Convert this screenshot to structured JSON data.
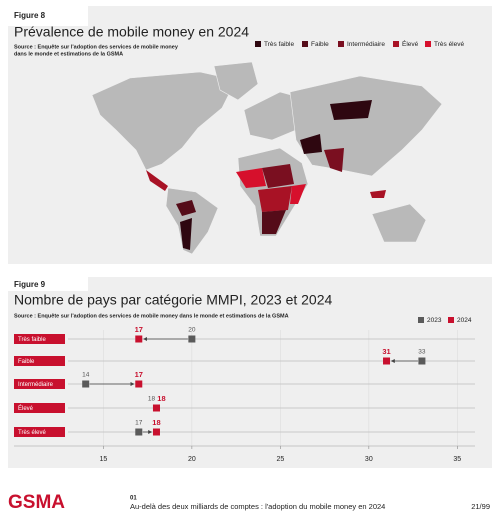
{
  "figure8": {
    "label": "Figure 8",
    "title": "Prévalence de mobile money en 2024",
    "source": [
      "Source : Enquête sur l'adoption des services de mobile money",
      "dans le monde et estimations de la GSMA"
    ],
    "legend": [
      {
        "label": "Très faible",
        "color": "#2e0710"
      },
      {
        "label": "Faible",
        "color": "#550c19"
      },
      {
        "label": "Intermédiaire",
        "color": "#7a0f20"
      },
      {
        "label": "Élevé",
        "color": "#a81225"
      },
      {
        "label": "Très élevé",
        "color": "#d6102c"
      }
    ]
  },
  "chart_data": {
    "type": "dumbbell",
    "figure_label": "Figure 9",
    "title": "Nombre de pays par catégorie MMPI, 2023 et 2024",
    "source": "Source : Enquête sur l'adoption des services de mobile money dans le monde et estimations de la GSMA",
    "categories": [
      "Très faible",
      "Faible",
      "Intermédiaire",
      "Élevé",
      "Très élevé"
    ],
    "series": [
      {
        "name": "2023",
        "color": "#5a5a5a",
        "values": [
          20,
          33,
          14,
          18,
          17
        ]
      },
      {
        "name": "2024",
        "color": "#c8102e",
        "values": [
          17,
          31,
          17,
          18,
          18
        ]
      }
    ],
    "xlim": [
      13,
      36
    ],
    "xticks": [
      15,
      20,
      25,
      30,
      35
    ],
    "grid": true
  },
  "footer": {
    "logo": "GSMA",
    "chapter": "01",
    "text": "Au-delà des deux milliards de comptes : l'adoption du mobile money en 2024",
    "page": "21/99"
  }
}
